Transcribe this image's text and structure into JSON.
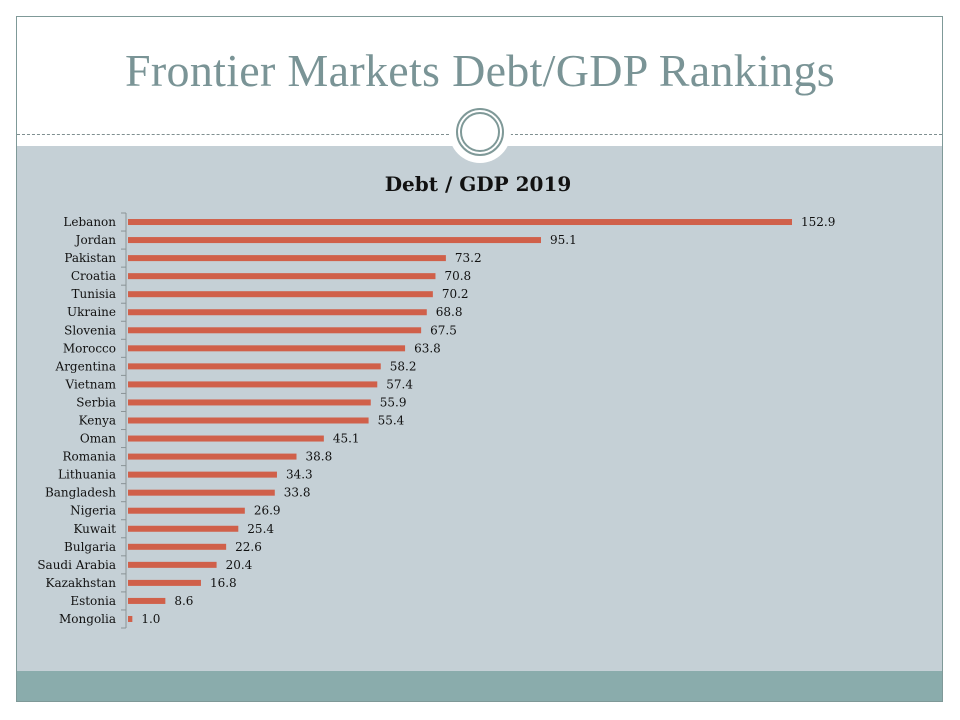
{
  "slide": {
    "title": "Frontier Markets Debt/GDP Rankings",
    "colors": {
      "title": "#7a9496",
      "panel": "#c5d0d6",
      "band": "#8aacac",
      "bar": "#d0604a",
      "axis": "#8a9396"
    }
  },
  "chart_data": {
    "type": "bar",
    "orientation": "horizontal",
    "title": "Debt / GDP 2019",
    "xlabel": "",
    "ylabel": "",
    "xlim": [
      0,
      152.9
    ],
    "grid": false,
    "legend": "none",
    "categories": [
      "Lebanon",
      "Jordan",
      "Pakistan",
      "Croatia",
      "Tunisia",
      "Ukraine",
      "Slovenia",
      "Morocco",
      "Argentina",
      "Vietnam",
      "Serbia",
      "Kenya",
      "Oman",
      "Romania",
      "Lithuania",
      "Bangladesh",
      "Nigeria",
      "Kuwait",
      "Bulgaria",
      "Saudi Arabia",
      "Kazakhstan",
      "Estonia",
      "Mongolia"
    ],
    "values": [
      152.9,
      95.1,
      73.2,
      70.8,
      70.2,
      68.8,
      67.5,
      63.8,
      58.2,
      57.4,
      55.9,
      55.4,
      45.1,
      38.8,
      34.3,
      33.8,
      26.9,
      25.4,
      22.6,
      20.4,
      16.8,
      8.6,
      1.0
    ],
    "value_labels": [
      "152.9",
      "95.1",
      "73.2",
      "70.8",
      "70.2",
      "68.8",
      "67.5",
      "63.8",
      "58.2",
      "57.4",
      "55.9",
      "55.4",
      "45.1",
      "38.8",
      "34.3",
      "33.8",
      "26.9",
      "25.4",
      "22.6",
      "20.4",
      "16.8",
      "8.6",
      "1.0"
    ]
  }
}
